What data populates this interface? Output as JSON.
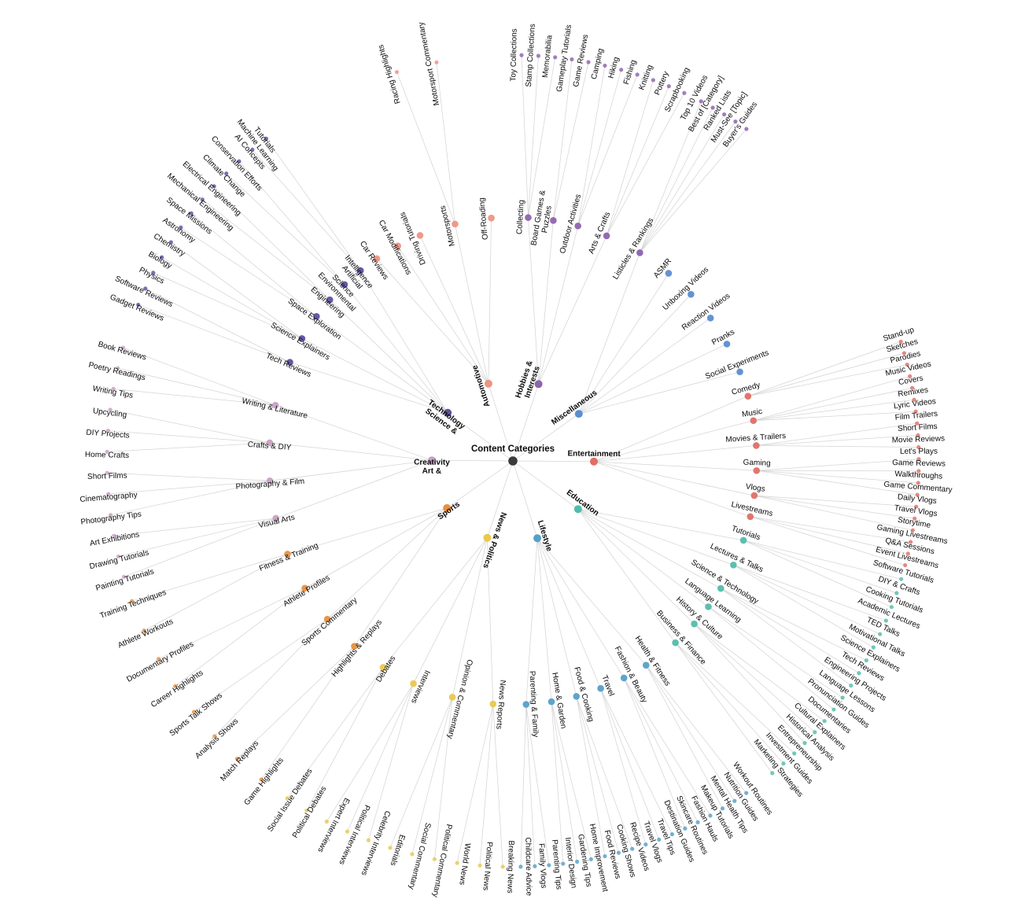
{
  "title": "Content Categories",
  "colors": {
    "root": "#3a3a3a",
    "line": "#d5d5d5",
    "text": "#0a0a0a",
    "branches": {
      "Entertainment": "#df6f66",
      "Education": "#54bcab",
      "Lifestyle": "#55a0c8",
      "News & Politics": "#e9c84c",
      "Sports": "#e8913f",
      "Art & Creativity": "#c7a1c3",
      "Science & Technology": "#5b51a0",
      "Automotive": "#ec9585",
      "Hobbies & Interests": "#8e64ad",
      "Miscellaneous": "#5b8dd1"
    },
    "overrides": {
      "Listicles & Rankings": "#8b60b0"
    }
  },
  "tree": {
    "label": "Content Categories",
    "children": [
      {
        "label": "Entertainment",
        "children": [
          {
            "label": "Comedy",
            "children": [
              {
                "label": "Stand-up"
              },
              {
                "label": "Sketches"
              },
              {
                "label": "Parodies"
              }
            ]
          },
          {
            "label": "Music",
            "children": [
              {
                "label": "Music Videos"
              },
              {
                "label": "Covers"
              },
              {
                "label": "Remixes"
              },
              {
                "label": "Lyric Videos"
              }
            ]
          },
          {
            "label": "Movies & Trailers",
            "children": [
              {
                "label": "Film Trailers"
              },
              {
                "label": "Short Films"
              },
              {
                "label": "Movie Reviews"
              }
            ]
          },
          {
            "label": "Gaming",
            "children": [
              {
                "label": "Let's Plays"
              },
              {
                "label": "Game Reviews"
              },
              {
                "label": "Walkthroughs"
              },
              {
                "label": "Game Commentary"
              }
            ]
          },
          {
            "label": "Vlogs",
            "children": [
              {
                "label": "Daily Vlogs"
              },
              {
                "label": "Travel Vlogs"
              },
              {
                "label": "Storytime"
              }
            ]
          },
          {
            "label": "Livestreams",
            "children": [
              {
                "label": "Gaming Livestreams"
              },
              {
                "label": "Q&A Sessions"
              },
              {
                "label": "Event Livestreams"
              }
            ]
          }
        ]
      },
      {
        "label": "Education",
        "children": [
          {
            "label": "Tutorials",
            "children": [
              {
                "label": "Software Tutorials"
              },
              {
                "label": "DIY & Crafts"
              },
              {
                "label": "Cooking Tutorials"
              }
            ]
          },
          {
            "label": "Lectures & Talks",
            "children": [
              {
                "label": "Academic Lectures"
              },
              {
                "label": "TED Talks"
              },
              {
                "label": "Motivational Talks"
              }
            ]
          },
          {
            "label": "Science & Technology",
            "children": [
              {
                "label": "Science Explainers"
              },
              {
                "label": "Tech Reviews"
              },
              {
                "label": "Engineering Projects"
              }
            ]
          },
          {
            "label": "Language Learning",
            "children": [
              {
                "label": "Language Lessons"
              },
              {
                "label": "Pronunciation Guides"
              }
            ]
          },
          {
            "label": "History & Culture",
            "children": [
              {
                "label": "Documentaries"
              },
              {
                "label": "Cultural Explainers"
              },
              {
                "label": "Historical Analysis"
              }
            ]
          },
          {
            "label": "Business & Finance",
            "children": [
              {
                "label": "Entrepreneurship"
              },
              {
                "label": "Investment Guides"
              },
              {
                "label": "Marketing Strategies"
              }
            ]
          }
        ]
      },
      {
        "label": "Lifestyle",
        "children": [
          {
            "label": "Health & Fitness",
            "children": [
              {
                "label": "Workout Routines"
              },
              {
                "label": "Nutrition Guides"
              },
              {
                "label": "Mental Health Tips"
              }
            ]
          },
          {
            "label": "Fashion & Beauty",
            "children": [
              {
                "label": "Makeup Tutorials"
              },
              {
                "label": "Fashion Hauls"
              },
              {
                "label": "Skincare Routines"
              }
            ]
          },
          {
            "label": "Travel",
            "children": [
              {
                "label": "Destination Guides"
              },
              {
                "label": "Travel Tips"
              },
              {
                "label": "Travel Vlogs"
              }
            ]
          },
          {
            "label": "Food & Cooking",
            "children": [
              {
                "label": "Recipe Videos"
              },
              {
                "label": "Cooking Shows"
              },
              {
                "label": "Food Reviews"
              }
            ]
          },
          {
            "label": "Home & Garden",
            "children": [
              {
                "label": "Home Improvement"
              },
              {
                "label": "Gardening Tips"
              },
              {
                "label": "Interior Design"
              }
            ]
          },
          {
            "label": "Parenting & Family",
            "children": [
              {
                "label": "Parenting Tips"
              },
              {
                "label": "Family Vlogs"
              },
              {
                "label": "Childcare Advice"
              }
            ]
          }
        ]
      },
      {
        "label": "News & Politics",
        "children": [
          {
            "label": "News Reports",
            "children": [
              {
                "label": "Breaking News"
              },
              {
                "label": "Political News"
              },
              {
                "label": "World News"
              }
            ]
          },
          {
            "label": "Opinion & Commentary",
            "children": [
              {
                "label": "Political Commentary"
              },
              {
                "label": "Social Commentary"
              },
              {
                "label": "Editorials"
              }
            ]
          },
          {
            "label": "Interviews",
            "children": [
              {
                "label": "Celebrity Interviews"
              },
              {
                "label": "Political Interviews"
              },
              {
                "label": "Expert Interviews"
              }
            ]
          },
          {
            "label": "Debates",
            "children": [
              {
                "label": "Political Debates"
              },
              {
                "label": "Social Issue Debates"
              }
            ]
          }
        ]
      },
      {
        "label": "Sports",
        "children": [
          {
            "label": "Highlights & Replays",
            "children": [
              {
                "label": "Game Highlights"
              },
              {
                "label": "Match Replays"
              }
            ]
          },
          {
            "label": "Sports Commentary",
            "children": [
              {
                "label": "Analysis Shows"
              },
              {
                "label": "Sports Talk Shows"
              }
            ]
          },
          {
            "label": "Athlete Profiles",
            "children": [
              {
                "label": "Career Highlights"
              },
              {
                "label": "Documentary Profiles"
              }
            ]
          },
          {
            "label": "Fitness & Training",
            "children": [
              {
                "label": "Athlete Workouts"
              },
              {
                "label": "Training Techniques"
              }
            ]
          }
        ]
      },
      {
        "label": "Art & Creativity",
        "lines": [
          "Art &",
          "Creativity"
        ],
        "children": [
          {
            "label": "Visual Arts",
            "children": [
              {
                "label": "Painting Tutorials"
              },
              {
                "label": "Drawing Tutorials"
              },
              {
                "label": "Art Exhibitions"
              }
            ]
          },
          {
            "label": "Photography & Film",
            "children": [
              {
                "label": "Photography Tips"
              },
              {
                "label": "Cinematography"
              },
              {
                "label": "Short Films"
              }
            ]
          },
          {
            "label": "Crafts & DIY",
            "children": [
              {
                "label": "Home Crafts"
              },
              {
                "label": "DIY Projects"
              },
              {
                "label": "Upcycling"
              }
            ]
          },
          {
            "label": "Writing & Literature",
            "children": [
              {
                "label": "Writing Tips"
              },
              {
                "label": "Poetry Readings"
              },
              {
                "label": "Book Reviews"
              }
            ]
          }
        ]
      },
      {
        "label": "Science & Technology",
        "lines": [
          "Science &",
          "Technology"
        ],
        "children": [
          {
            "label": "Tech Reviews",
            "children": [
              {
                "label": "Gadget Reviews"
              },
              {
                "label": "Software Reviews"
              }
            ]
          },
          {
            "label": "Science Explainers",
            "children": [
              {
                "label": "Physics"
              },
              {
                "label": "Biology"
              },
              {
                "label": "Chemistry"
              }
            ]
          },
          {
            "label": "Space Exploration",
            "children": [
              {
                "label": "Astronomy"
              },
              {
                "label": "Space Missions"
              }
            ]
          },
          {
            "label": "Engineering",
            "children": [
              {
                "label": "Mechanical Engineering"
              },
              {
                "label": "Electrical Engineering"
              }
            ]
          },
          {
            "label": "Environmental Science",
            "lines": [
              "Environmental",
              "Science"
            ],
            "children": [
              {
                "label": "Climate Change"
              },
              {
                "label": "Conservation Efforts"
              }
            ]
          },
          {
            "label": "Artificial Intelligence",
            "lines": [
              "Artificial",
              "Intelligence"
            ],
            "children": [
              {
                "label": "AI Concepts"
              },
              {
                "label": "Machine Learning Tutorials",
                "lines": [
                  "Machine Learning",
                  "Tutorials"
                ]
              }
            ]
          }
        ]
      },
      {
        "label": "Automotive",
        "children": [
          {
            "label": "Car Reviews"
          },
          {
            "label": "Car Modifications"
          },
          {
            "label": "Driving Tutorials"
          },
          {
            "label": "Motorsports",
            "children": [
              {
                "label": "Racing Highlights"
              },
              {
                "label": "Motorsport Commentary"
              }
            ]
          },
          {
            "label": "Off-Roading"
          }
        ]
      },
      {
        "label": "Hobbies & Interests",
        "lines": [
          "Hobbies &",
          "Interests"
        ],
        "children": [
          {
            "label": "Collecting",
            "children": [
              {
                "label": "Toy Collections"
              },
              {
                "label": "Stamp Collections"
              },
              {
                "label": "Memorabilia"
              }
            ]
          },
          {
            "label": "Board Games & Puzzles",
            "lines": [
              "Board Games &",
              "Puzzles"
            ],
            "children": [
              {
                "label": "Gameplay Tutorials"
              },
              {
                "label": "Game Reviews"
              }
            ]
          },
          {
            "label": "Outdoor Activities",
            "children": [
              {
                "label": "Camping"
              },
              {
                "label": "Hiking"
              },
              {
                "label": "Fishing"
              }
            ]
          },
          {
            "label": "Arts & Crafts",
            "children": [
              {
                "label": "Knitting"
              },
              {
                "label": "Pottery"
              },
              {
                "label": "Scrapbooking"
              }
            ]
          }
        ]
      },
      {
        "label": "Miscellaneous",
        "children": [
          {
            "label": "Listicles & Rankings",
            "children": [
              {
                "label": "Top 10 Videos"
              },
              {
                "label": "Best of [Category]"
              },
              {
                "label": "Ranked Lists"
              },
              {
                "label": "Must-See [Topic]"
              },
              {
                "label": "Buyer's Guides"
              }
            ]
          },
          {
            "label": "ASMR"
          },
          {
            "label": "Unboxing Videos"
          },
          {
            "label": "Reaction Videos"
          },
          {
            "label": "Pranks"
          },
          {
            "label": "Social Experiments"
          }
        ]
      }
    ]
  }
}
